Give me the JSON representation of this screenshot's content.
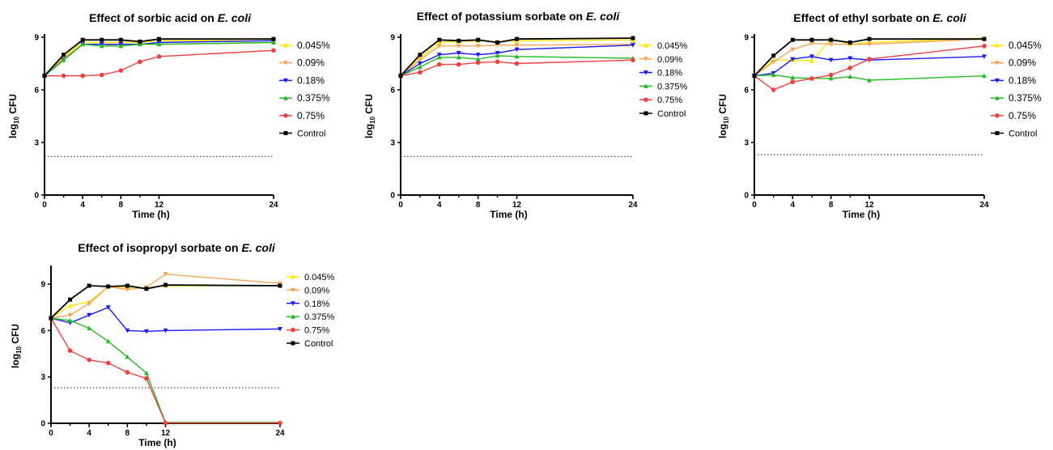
{
  "chart_data": [
    {
      "type": "line",
      "title": "Effect of sorbic acid on ",
      "title_italic": "E. coli",
      "xlabel": "Time (h)",
      "ylabel": "log",
      "ylabel_sub": "10",
      "ylabel_suffix": " CFU",
      "xticks": [
        "0",
        "4",
        "8",
        "12",
        "24"
      ],
      "yticks": [
        "0",
        "3",
        "6",
        "9"
      ],
      "xlim": [
        0,
        24
      ],
      "ylim": [
        0,
        9
      ],
      "threshold": 2.2,
      "x": [
        0,
        2,
        4,
        6,
        8,
        10,
        12,
        24
      ],
      "series": [
        {
          "name": "0.045%",
          "color": "#ffe600",
          "values": [
            6.8,
            7.9,
            8.7,
            8.7,
            8.7,
            8.7,
            8.8,
            8.8
          ]
        },
        {
          "name": "0.09%",
          "color": "#f5a55a",
          "values": [
            6.8,
            7.8,
            8.6,
            8.6,
            8.5,
            8.6,
            8.6,
            8.7
          ]
        },
        {
          "name": "0.18%",
          "color": "#1a1aff",
          "values": [
            6.8,
            7.7,
            8.6,
            8.6,
            8.6,
            8.6,
            8.7,
            8.8
          ]
        },
        {
          "name": "0.375%",
          "color": "#22bb22",
          "values": [
            6.8,
            7.7,
            8.6,
            8.5,
            8.5,
            8.6,
            8.6,
            8.7
          ]
        },
        {
          "name": "0.75%",
          "color": "#f04040",
          "values": [
            6.8,
            6.8,
            6.8,
            6.85,
            7.1,
            7.6,
            7.9,
            8.25
          ]
        },
        {
          "name": "Control",
          "color": "#000000",
          "values": [
            6.8,
            8.0,
            8.85,
            8.85,
            8.85,
            8.75,
            8.9,
            8.9
          ]
        }
      ]
    },
    {
      "type": "line",
      "title": "Effect of potassium sorbate on ",
      "title_italic": "E. coli",
      "xlabel": "Time (h)",
      "ylabel": "log",
      "ylabel_sub": "10",
      "ylabel_suffix": " CFU",
      "xticks": [
        "0",
        "4",
        "8",
        "12",
        "24"
      ],
      "yticks": [
        "0",
        "3",
        "6",
        "9"
      ],
      "xlim": [
        0,
        24
      ],
      "ylim": [
        0,
        9
      ],
      "threshold": 2.2,
      "x": [
        0,
        2,
        4,
        6,
        8,
        10,
        12,
        24
      ],
      "series": [
        {
          "name": "0.045%",
          "color": "#ffe600",
          "values": [
            6.8,
            7.8,
            8.7,
            8.75,
            8.8,
            8.75,
            8.8,
            8.85
          ]
        },
        {
          "name": "0.09%",
          "color": "#f5a55a",
          "values": [
            6.8,
            7.7,
            8.5,
            8.5,
            8.5,
            8.55,
            8.55,
            8.6
          ]
        },
        {
          "name": "0.18%",
          "color": "#1a1aff",
          "values": [
            6.8,
            7.5,
            8.0,
            8.1,
            8.0,
            8.1,
            8.3,
            8.55
          ]
        },
        {
          "name": "0.375%",
          "color": "#22bb22",
          "values": [
            6.8,
            7.3,
            7.85,
            7.85,
            7.75,
            7.95,
            7.9,
            7.8
          ]
        },
        {
          "name": "0.75%",
          "color": "#f04040",
          "values": [
            6.8,
            7.0,
            7.45,
            7.45,
            7.55,
            7.6,
            7.5,
            7.7
          ]
        },
        {
          "name": "Control",
          "color": "#000000",
          "values": [
            6.8,
            8.0,
            8.85,
            8.8,
            8.85,
            8.7,
            8.9,
            8.95
          ]
        }
      ]
    },
    {
      "type": "line",
      "title": "Effect of ethyl sorbate on ",
      "title_italic": "E. coli",
      "xlabel": "Time (h)",
      "ylabel": "log",
      "ylabel_sub": "10",
      "ylabel_suffix": " CFU",
      "xticks": [
        "0",
        "4",
        "8",
        "12",
        "24"
      ],
      "yticks": [
        "0",
        "3",
        "6",
        "9"
      ],
      "xlim": [
        0,
        24
      ],
      "ylim": [
        0,
        9
      ],
      "threshold": 2.3,
      "x": [
        0,
        2,
        4,
        6,
        8,
        10,
        12,
        24
      ],
      "series": [
        {
          "name": "0.045%",
          "color": "#ffe600",
          "values": [
            6.8,
            7.7,
            7.7,
            7.65,
            8.9,
            8.6,
            8.7,
            8.95
          ]
        },
        {
          "name": "0.09%",
          "color": "#f5a55a",
          "values": [
            6.8,
            7.6,
            8.3,
            8.65,
            8.6,
            8.6,
            8.6,
            8.9
          ]
        },
        {
          "name": "0.18%",
          "color": "#1a1aff",
          "values": [
            6.8,
            6.95,
            7.75,
            7.9,
            7.7,
            7.8,
            7.7,
            7.9
          ]
        },
        {
          "name": "0.375%",
          "color": "#22bb22",
          "values": [
            6.8,
            6.85,
            6.7,
            6.65,
            6.65,
            6.75,
            6.55,
            6.8
          ]
        },
        {
          "name": "0.75%",
          "color": "#f04040",
          "values": [
            6.8,
            6.0,
            6.45,
            6.65,
            6.85,
            7.25,
            7.75,
            8.5
          ]
        },
        {
          "name": "Control",
          "color": "#000000",
          "values": [
            6.8,
            7.95,
            8.85,
            8.85,
            8.85,
            8.7,
            8.9,
            8.9
          ]
        }
      ]
    },
    {
      "type": "line",
      "title": "Effect of isopropyl sorbate on ",
      "title_italic": "E. coli",
      "xlabel": "Time (h)",
      "ylabel": "log",
      "ylabel_sub": "10",
      "ylabel_suffix": " CFU",
      "xticks": [
        "0",
        "4",
        "8",
        "12",
        "24"
      ],
      "yticks": [
        "0",
        "3",
        "6",
        "9"
      ],
      "xlim": [
        0,
        24
      ],
      "ylim": [
        0,
        10
      ],
      "threshold": 2.3,
      "x": [
        0,
        2,
        4,
        6,
        8,
        10,
        12,
        24
      ],
      "series": [
        {
          "name": "0.045%",
          "color": "#ffe600",
          "values": [
            6.8,
            7.6,
            7.85,
            8.85,
            8.8,
            8.75,
            8.9,
            8.9
          ]
        },
        {
          "name": "0.09%",
          "color": "#f5a55a",
          "values": [
            6.8,
            7.0,
            7.75,
            8.85,
            8.65,
            8.8,
            9.65,
            9.05
          ]
        },
        {
          "name": "0.18%",
          "color": "#1a1aff",
          "values": [
            6.8,
            6.5,
            7.0,
            7.5,
            6.0,
            5.95,
            6.0,
            6.1
          ]
        },
        {
          "name": "0.375%",
          "color": "#22bb22",
          "values": [
            6.8,
            6.65,
            6.15,
            5.3,
            4.3,
            3.25,
            0.05,
            0.05
          ]
        },
        {
          "name": "0.75%",
          "color": "#f04040",
          "values": [
            6.8,
            4.7,
            4.1,
            3.9,
            3.3,
            2.9,
            0.02,
            0.02
          ]
        },
        {
          "name": "Control",
          "color": "#000000",
          "values": [
            6.8,
            8.0,
            8.9,
            8.85,
            8.9,
            8.7,
            8.95,
            8.9
          ]
        }
      ]
    }
  ]
}
